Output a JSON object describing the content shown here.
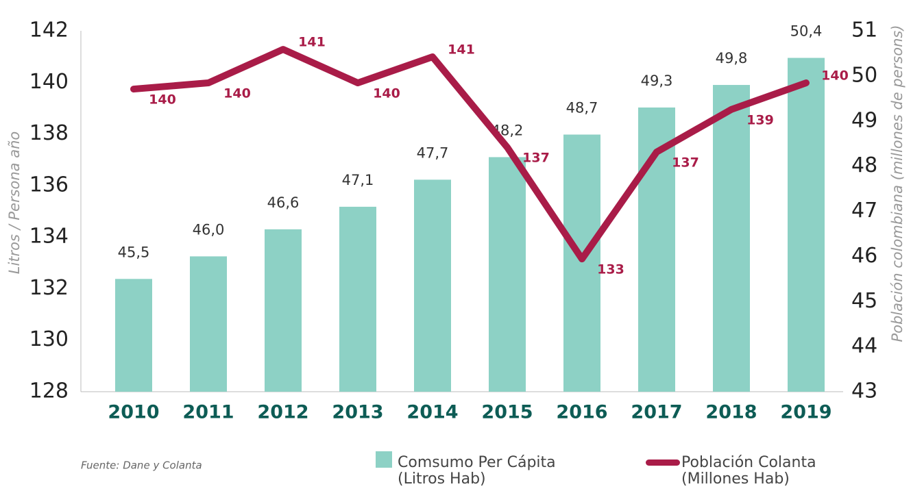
{
  "chart_data": {
    "type": "bar-line",
    "ylabel": "Litros / Persona año",
    "y2label": "Población colombiana (millones de persons)",
    "source": "Fuente: Dane y Colanta",
    "categories": [
      "2010",
      "2011",
      "2012",
      "2013",
      "2014",
      "2015",
      "2016",
      "2017",
      "2018",
      "2019"
    ],
    "series": [
      {
        "name": "Comsumo Per Cápita (Litros Hab)",
        "type": "bar",
        "axis": "y2",
        "color": "#8dd1c5",
        "values": [
          45.5,
          46.0,
          46.6,
          47.1,
          47.7,
          48.2,
          48.7,
          49.3,
          49.8,
          50.4
        ],
        "value_labels": [
          "45,5",
          "46,0",
          "46,6",
          "47,1",
          "47,7",
          "48,2",
          "48,7",
          "49,3",
          "49,8",
          "50,4"
        ]
      },
      {
        "name": "Población Colanta (Millones Hab)",
        "type": "line",
        "axis": "y",
        "color": "#a91c48",
        "values": [
          139.74,
          139.98,
          141.28,
          139.98,
          140.99,
          137.48,
          133.15,
          137.3,
          138.95,
          139.98
        ],
        "value_labels": [
          "140",
          "140",
          "141",
          "140",
          "141",
          "137",
          "133",
          "137",
          "139",
          "140"
        ]
      }
    ],
    "ylim": [
      128,
      142
    ],
    "yticks": [
      128,
      130,
      132,
      134,
      136,
      138,
      140,
      142
    ],
    "y2lim": [
      43,
      51
    ],
    "y2ticks": [
      43,
      44,
      45,
      46,
      47,
      48,
      49,
      50,
      51
    ]
  }
}
